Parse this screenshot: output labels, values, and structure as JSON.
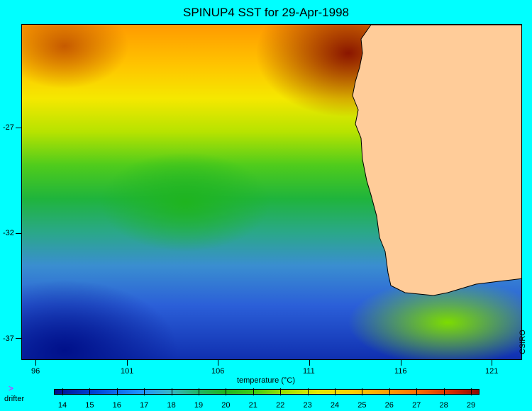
{
  "title": "SPINUP4 SST for 29-Apr-1998",
  "credit": "CSIRO",
  "y_axis": {
    "ticks": [
      "-27",
      "-32",
      "-37"
    ]
  },
  "x_axis": {
    "ticks": [
      "96",
      "101",
      "106",
      "111",
      "116",
      "121"
    ]
  },
  "colorbar": {
    "title": "temperature (°C)",
    "labels": [
      "14",
      "15",
      "16",
      "17",
      "18",
      "19",
      "20",
      "21",
      "22",
      "23",
      "24",
      "25",
      "26",
      "27",
      "28",
      "29"
    ]
  },
  "legend": {
    "marker": ">",
    "label": "drifter",
    "marker_color": "#ff00ff"
  },
  "colors": {
    "background": "#00ffff",
    "land": "#ffcc99"
  }
}
